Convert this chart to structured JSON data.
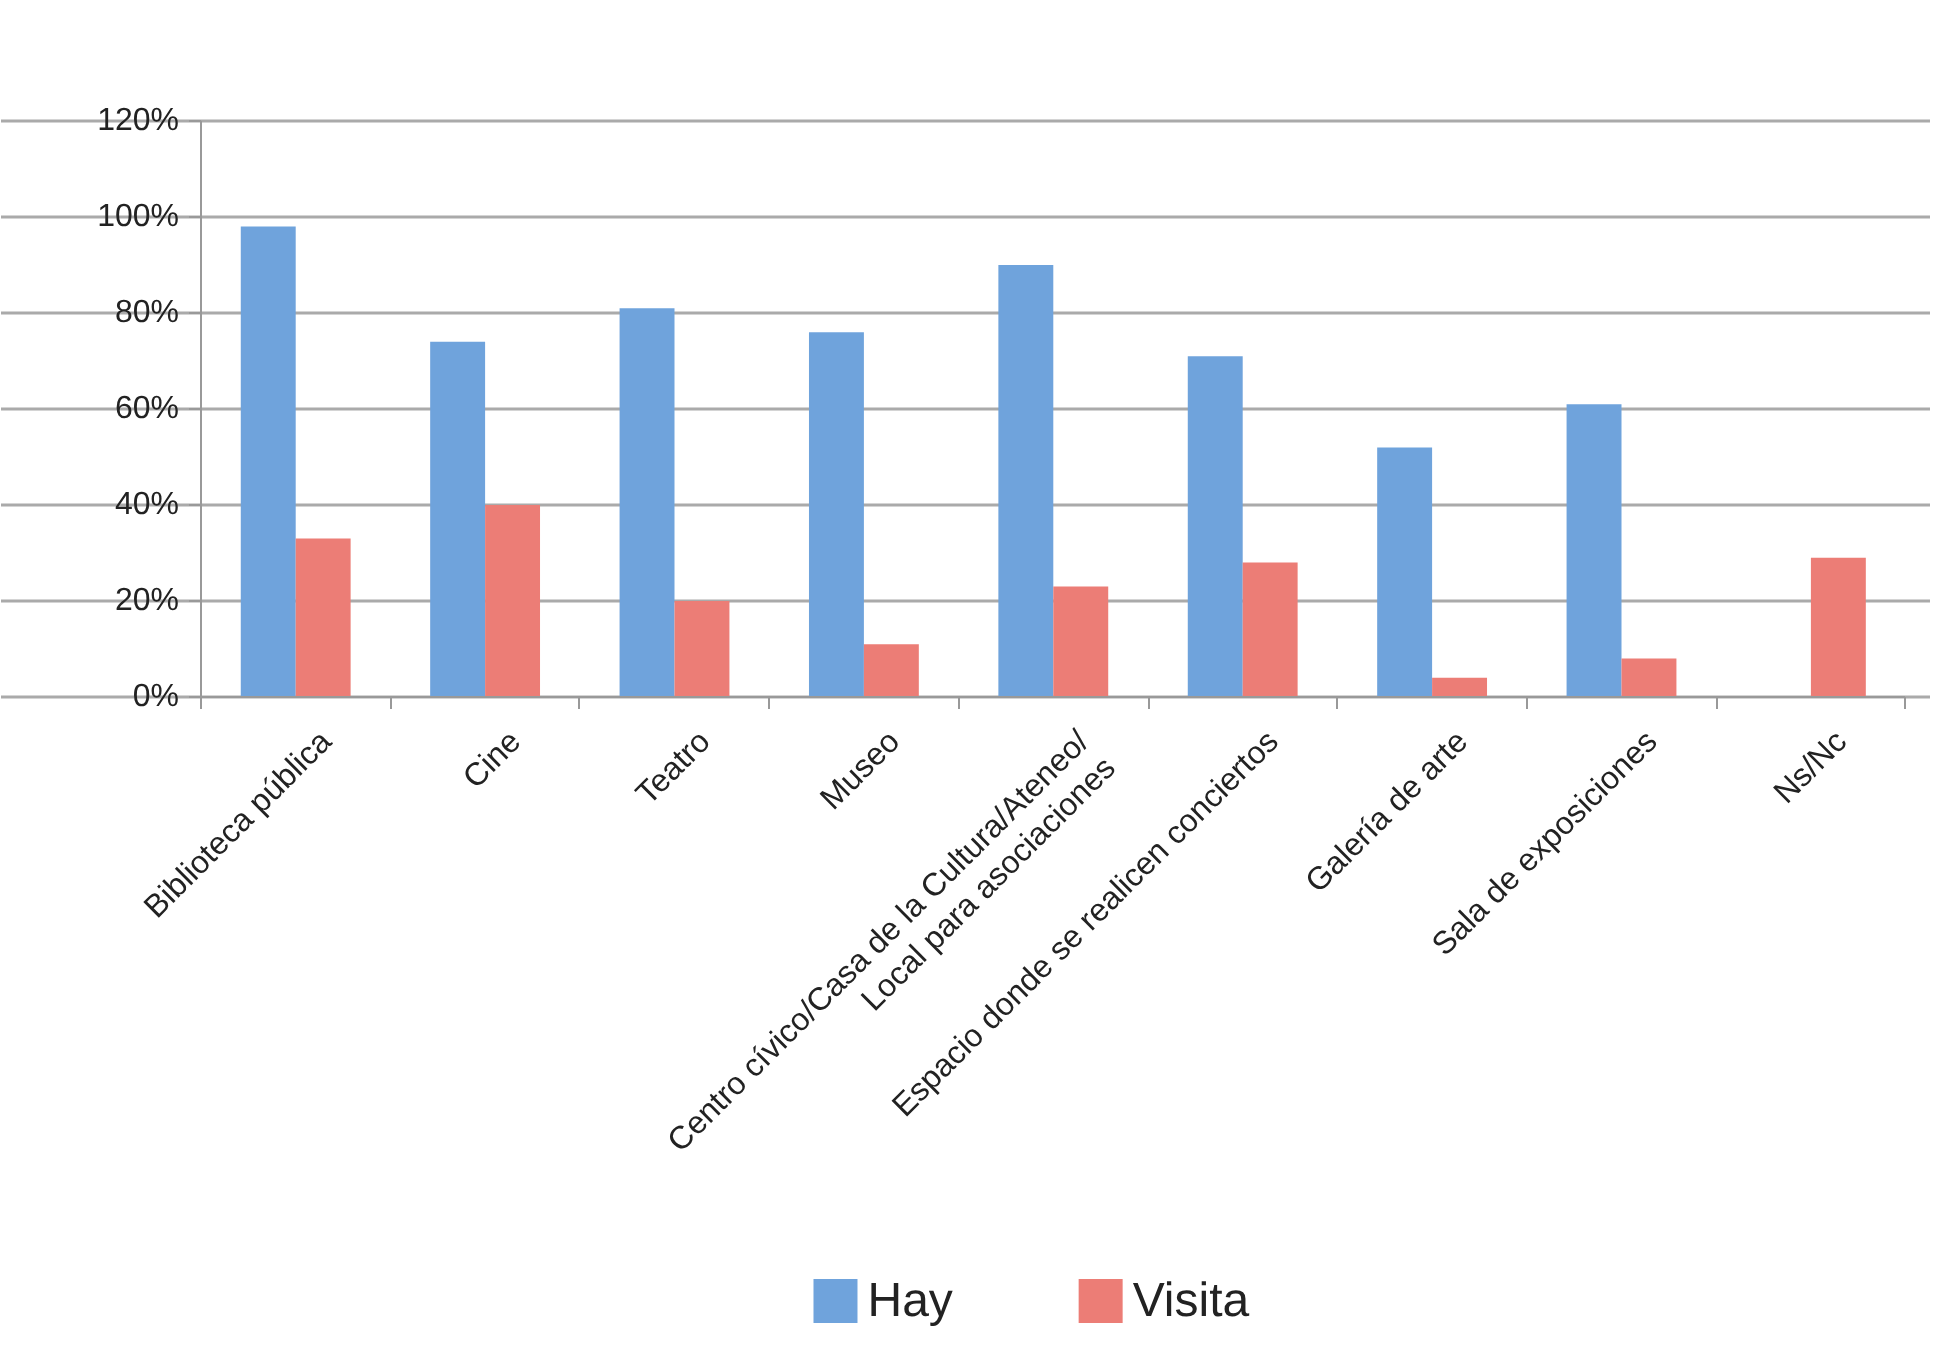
{
  "chart_data": {
    "type": "bar",
    "categories": [
      "Biblioteca pública",
      "Cine",
      "Teatro",
      "Museo",
      "Centro cívico/Casa de la Cultura/Ateneo/\nLocal para asociaciones",
      "Espacio donde se realicen conciertos",
      "Galería de arte",
      "Sala de exposiciones",
      "Ns/Nc"
    ],
    "series": [
      {
        "name": "Hay",
        "color": "#6fa3dc",
        "values": [
          98,
          74,
          81,
          76,
          90,
          71,
          52,
          61,
          0
        ]
      },
      {
        "name": "Visita",
        "color": "#ec7d76",
        "values": [
          33,
          40,
          20,
          11,
          23,
          28,
          4,
          8,
          29
        ]
      }
    ],
    "ylim": [
      0,
      120
    ],
    "yticks": [
      {
        "value": 0,
        "label": "0%"
      },
      {
        "value": 20,
        "label": "20%"
      },
      {
        "value": 40,
        "label": "40%"
      },
      {
        "value": 60,
        "label": "60%"
      },
      {
        "value": 80,
        "label": "80%"
      },
      {
        "value": 100,
        "label": "100%"
      },
      {
        "value": 120,
        "label": "120%"
      }
    ],
    "grid": "y",
    "legend": "bottom"
  }
}
